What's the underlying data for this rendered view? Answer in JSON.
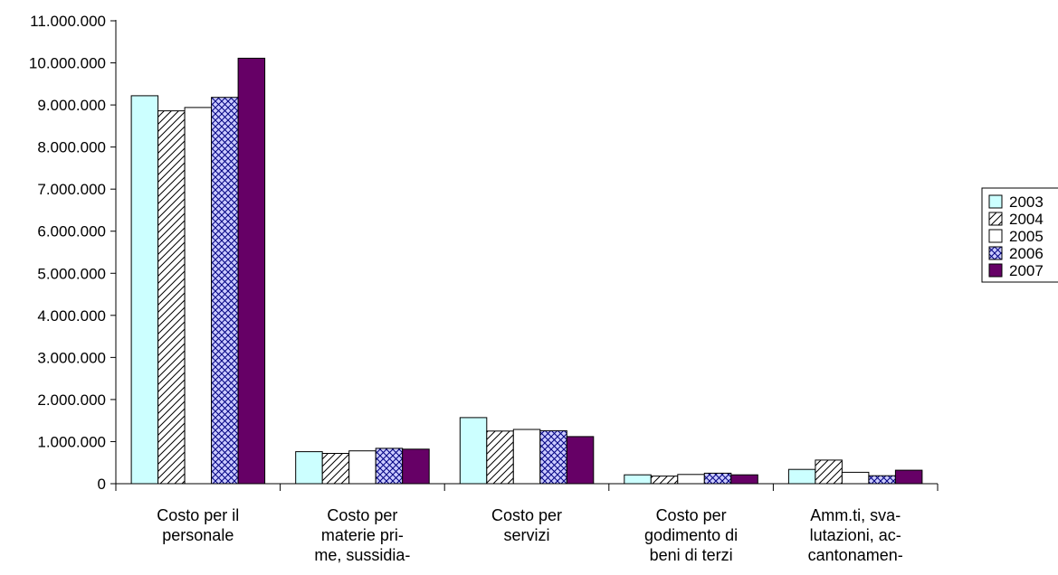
{
  "chart_data": {
    "type": "bar",
    "categories": [
      [
        "Costo per il",
        "personale"
      ],
      [
        "Costo per",
        "materie pri-",
        "me, sussidia-"
      ],
      [
        "Costo per",
        "servizi"
      ],
      [
        "Costo per",
        "godimento di",
        "beni di terzi"
      ],
      [
        "Amm.ti, sva-",
        "lutazioni, ac-",
        "cantonamen-"
      ]
    ],
    "series": [
      {
        "name": "2003",
        "values": [
          9220000,
          760000,
          1570000,
          210000,
          340000
        ],
        "fill": "#ccffff",
        "pattern": "solid"
      },
      {
        "name": "2004",
        "values": [
          8860000,
          720000,
          1250000,
          180000,
          560000
        ],
        "fill": "#ffffff",
        "pattern": "diagonal"
      },
      {
        "name": "2005",
        "values": [
          8940000,
          780000,
          1290000,
          220000,
          270000
        ],
        "fill": "#ffffff",
        "pattern": "solid"
      },
      {
        "name": "2006",
        "values": [
          9180000,
          840000,
          1260000,
          250000,
          190000
        ],
        "fill": "#ccccff",
        "pattern": "crosshatch"
      },
      {
        "name": "2007",
        "values": [
          10110000,
          820000,
          1120000,
          210000,
          320000
        ],
        "fill": "#660066",
        "pattern": "solid"
      }
    ],
    "ylim": [
      0,
      11000000
    ],
    "y_ticks": [
      {
        "value": 0,
        "label": "0"
      },
      {
        "value": 1000000,
        "label": "1.000.000"
      },
      {
        "value": 2000000,
        "label": "2.000.000"
      },
      {
        "value": 3000000,
        "label": "3.000.000"
      },
      {
        "value": 4000000,
        "label": "4.000.000"
      },
      {
        "value": 5000000,
        "label": "5.000.000"
      },
      {
        "value": 6000000,
        "label": "6.000.000"
      },
      {
        "value": 7000000,
        "label": "7.000.000"
      },
      {
        "value": 8000000,
        "label": "8.000.000"
      },
      {
        "value": 9000000,
        "label": "9.000.000"
      },
      {
        "value": 10000000,
        "label": "10.000.000"
      },
      {
        "value": 11000000,
        "label": "11.000.000"
      }
    ],
    "legend_position": "right",
    "grid": false
  }
}
